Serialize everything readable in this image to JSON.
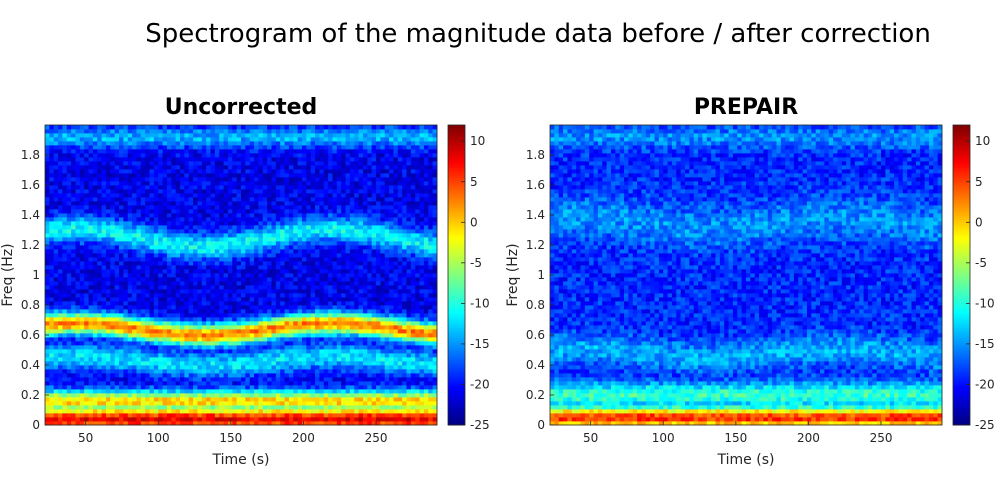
{
  "figure": {
    "title": "Spectrogram of the magnitude data before / after correction"
  },
  "chart_data": [
    {
      "type": "heatmap",
      "title": "Uncorrected",
      "xlabel": "Time (s)",
      "ylabel": "Freq (Hz)",
      "xlim": [
        22,
        292
      ],
      "ylim": [
        0,
        2.0
      ],
      "xticks": [
        50,
        100,
        150,
        200,
        250
      ],
      "yticks": [
        0,
        0.2,
        0.4,
        0.6,
        0.8,
        1,
        1.2,
        1.4,
        1.6,
        1.8
      ],
      "colormap": "jet",
      "clim": [
        -25,
        12
      ],
      "colorbar_ticks": [
        10,
        5,
        0,
        -5,
        -10,
        -15,
        -20,
        -25
      ],
      "background_db": -21,
      "bands": [
        {
          "freq_hz": 0.04,
          "width_hz": 0.06,
          "peak_db": 8,
          "drift_hz": 0.0
        },
        {
          "freq_hz": 0.16,
          "width_hz": 0.05,
          "peak_db": 0,
          "drift_hz": 0.0
        },
        {
          "freq_hz": 0.43,
          "width_hz": 0.06,
          "peak_db": -12,
          "drift_hz": 0.03
        },
        {
          "freq_hz": 0.64,
          "width_hz": 0.05,
          "peak_db": 3,
          "drift_hz": 0.04
        },
        {
          "freq_hz": 1.25,
          "width_hz": 0.06,
          "peak_db": -11,
          "drift_hz": 0.06
        },
        {
          "freq_hz": 1.92,
          "width_hz": 0.05,
          "peak_db": -14,
          "drift_hz": 0.0
        }
      ]
    },
    {
      "type": "heatmap",
      "title": "PREPAIR",
      "xlabel": "Time (s)",
      "ylabel": "Freq (Hz)",
      "xlim": [
        22,
        292
      ],
      "ylim": [
        0,
        2.0
      ],
      "xticks": [
        50,
        100,
        150,
        200,
        250
      ],
      "yticks": [
        0,
        0.2,
        0.4,
        0.6,
        0.8,
        1,
        1.2,
        1.4,
        1.6,
        1.8
      ],
      "colormap": "jet",
      "clim": [
        -25,
        12
      ],
      "colorbar_ticks": [
        10,
        5,
        0,
        -5,
        -10,
        -15,
        -20,
        -25
      ],
      "background_db": -19,
      "bands": [
        {
          "freq_hz": 0.05,
          "width_hz": 0.05,
          "peak_db": 6,
          "drift_hz": 0.0
        },
        {
          "freq_hz": 0.2,
          "width_hz": 0.06,
          "peak_db": -9,
          "drift_hz": 0.0
        },
        {
          "freq_hz": 0.48,
          "width_hz": 0.07,
          "peak_db": -14,
          "drift_hz": 0.03
        },
        {
          "freq_hz": 1.35,
          "width_hz": 0.1,
          "peak_db": -15,
          "drift_hz": 0.04
        },
        {
          "freq_hz": 1.92,
          "width_hz": 0.05,
          "peak_db": -15,
          "drift_hz": 0.0
        }
      ]
    }
  ]
}
